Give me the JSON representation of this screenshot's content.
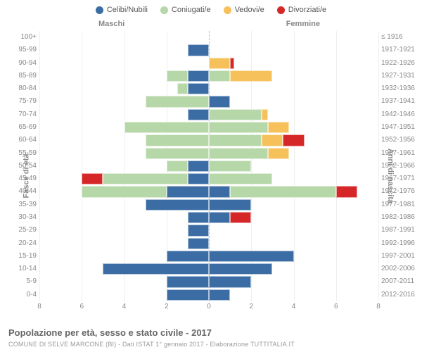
{
  "legend": [
    {
      "label": "Celibi/Nubili",
      "color": "#3b6da4"
    },
    {
      "label": "Coniugati/e",
      "color": "#b6d7a8"
    },
    {
      "label": "Vedovi/e",
      "color": "#f6c15a"
    },
    {
      "label": "Divorziati/e",
      "color": "#d62728"
    }
  ],
  "gender_labels": {
    "m": "Maschi",
    "f": "Femmine"
  },
  "axis_titles": {
    "left": "Fasce di età",
    "right": "Anni di nascita"
  },
  "xaxis": {
    "min": -8,
    "max": 8,
    "ticks": [
      -8,
      -6,
      -4,
      -2,
      0,
      2,
      4,
      6,
      8
    ],
    "labels": [
      "8",
      "6",
      "4",
      "2",
      "0",
      "2",
      "4",
      "6",
      "8"
    ]
  },
  "colors": {
    "cel": "#3b6da4",
    "con": "#b6d7a8",
    "ved": "#f6c15a",
    "div": "#d62728",
    "grid": "#eeeeee",
    "zero": "#bbbbbb",
    "text": "#888888",
    "bg": "#ffffff"
  },
  "title": "Popolazione per età, sesso e stato civile - 2017",
  "subtitle": "COMUNE DI SELVE MARCONE (BI) - Dati ISTAT 1° gennaio 2017 - Elaborazione TUTTITALIA.IT",
  "rows": [
    {
      "age": "100+",
      "birth": "≤ 1916",
      "m": {
        "cel": 0,
        "con": 0,
        "ved": 0,
        "div": 0
      },
      "f": {
        "cel": 0,
        "con": 0,
        "ved": 0,
        "div": 0
      }
    },
    {
      "age": "95-99",
      "birth": "1917-1921",
      "m": {
        "cel": 1,
        "con": 0,
        "ved": 0,
        "div": 0
      },
      "f": {
        "cel": 0,
        "con": 0,
        "ved": 0,
        "div": 0
      }
    },
    {
      "age": "90-94",
      "birth": "1922-1926",
      "m": {
        "cel": 0,
        "con": 0,
        "ved": 0,
        "div": 0
      },
      "f": {
        "cel": 0,
        "con": 0,
        "ved": 1,
        "div": 0.2
      }
    },
    {
      "age": "85-89",
      "birth": "1927-1931",
      "m": {
        "cel": 1,
        "con": 1,
        "ved": 0,
        "div": 0
      },
      "f": {
        "cel": 0,
        "con": 1,
        "ved": 2,
        "div": 0
      }
    },
    {
      "age": "80-84",
      "birth": "1932-1936",
      "m": {
        "cel": 1,
        "con": 0.5,
        "ved": 0,
        "div": 0
      },
      "f": {
        "cel": 0,
        "con": 0,
        "ved": 0,
        "div": 0
      }
    },
    {
      "age": "75-79",
      "birth": "1937-1941",
      "m": {
        "cel": 0,
        "con": 3,
        "ved": 0,
        "div": 0
      },
      "f": {
        "cel": 1,
        "con": 0,
        "ved": 0,
        "div": 0
      }
    },
    {
      "age": "70-74",
      "birth": "1942-1946",
      "m": {
        "cel": 1,
        "con": 0,
        "ved": 0,
        "div": 0
      },
      "f": {
        "cel": 0,
        "con": 2.5,
        "ved": 0.3,
        "div": 0
      }
    },
    {
      "age": "65-69",
      "birth": "1947-1951",
      "m": {
        "cel": 0,
        "con": 4,
        "ved": 0,
        "div": 0
      },
      "f": {
        "cel": 0,
        "con": 2.8,
        "ved": 1,
        "div": 0
      }
    },
    {
      "age": "60-64",
      "birth": "1952-1956",
      "m": {
        "cel": 0,
        "con": 3,
        "ved": 0,
        "div": 0
      },
      "f": {
        "cel": 0,
        "con": 2.5,
        "ved": 1,
        "div": 1
      }
    },
    {
      "age": "55-59",
      "birth": "1957-1961",
      "m": {
        "cel": 0,
        "con": 3,
        "ved": 0,
        "div": 0
      },
      "f": {
        "cel": 0,
        "con": 2.8,
        "ved": 1,
        "div": 0
      }
    },
    {
      "age": "50-54",
      "birth": "1962-1966",
      "m": {
        "cel": 1,
        "con": 1,
        "ved": 0,
        "div": 0
      },
      "f": {
        "cel": 0,
        "con": 2,
        "ved": 0,
        "div": 0
      }
    },
    {
      "age": "45-49",
      "birth": "1967-1971",
      "m": {
        "cel": 1,
        "con": 4,
        "ved": 0,
        "div": 1
      },
      "f": {
        "cel": 0,
        "con": 3,
        "ved": 0,
        "div": 0
      }
    },
    {
      "age": "40-44",
      "birth": "1972-1976",
      "m": {
        "cel": 2,
        "con": 4,
        "ved": 0,
        "div": 0
      },
      "f": {
        "cel": 1,
        "con": 5,
        "ved": 0,
        "div": 1
      }
    },
    {
      "age": "35-39",
      "birth": "1977-1981",
      "m": {
        "cel": 3,
        "con": 0,
        "ved": 0,
        "div": 0
      },
      "f": {
        "cel": 2,
        "con": 0,
        "ved": 0,
        "div": 0
      }
    },
    {
      "age": "30-34",
      "birth": "1982-1986",
      "m": {
        "cel": 1,
        "con": 0,
        "ved": 0,
        "div": 0
      },
      "f": {
        "cel": 1,
        "con": 0,
        "ved": 0,
        "div": 1
      }
    },
    {
      "age": "25-29",
      "birth": "1987-1991",
      "m": {
        "cel": 1,
        "con": 0,
        "ved": 0,
        "div": 0
      },
      "f": {
        "cel": 0,
        "con": 0,
        "ved": 0,
        "div": 0
      }
    },
    {
      "age": "20-24",
      "birth": "1992-1996",
      "m": {
        "cel": 1,
        "con": 0,
        "ved": 0,
        "div": 0
      },
      "f": {
        "cel": 0,
        "con": 0,
        "ved": 0,
        "div": 0
      }
    },
    {
      "age": "15-19",
      "birth": "1997-2001",
      "m": {
        "cel": 2,
        "con": 0,
        "ved": 0,
        "div": 0
      },
      "f": {
        "cel": 4,
        "con": 0,
        "ved": 0,
        "div": 0
      }
    },
    {
      "age": "10-14",
      "birth": "2002-2006",
      "m": {
        "cel": 5,
        "con": 0,
        "ved": 0,
        "div": 0
      },
      "f": {
        "cel": 3,
        "con": 0,
        "ved": 0,
        "div": 0
      }
    },
    {
      "age": "5-9",
      "birth": "2007-2011",
      "m": {
        "cel": 2,
        "con": 0,
        "ved": 0,
        "div": 0
      },
      "f": {
        "cel": 2,
        "con": 0,
        "ved": 0,
        "div": 0
      }
    },
    {
      "age": "0-4",
      "birth": "2012-2016",
      "m": {
        "cel": 2,
        "con": 0,
        "ved": 0,
        "div": 0
      },
      "f": {
        "cel": 1,
        "con": 0,
        "ved": 0,
        "div": 0
      }
    }
  ]
}
